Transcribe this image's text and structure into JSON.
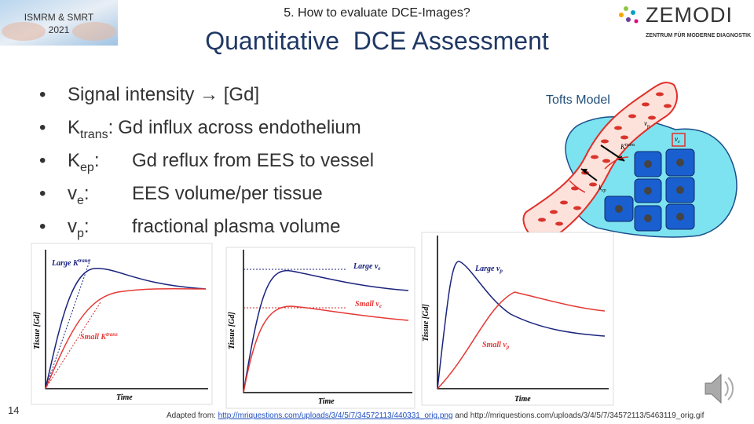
{
  "badge": {
    "line1": "ISMRM & SMRT",
    "line2": "2021"
  },
  "subtitle": "5. How to evaluate DCE-Images?",
  "title": "Quantitative  DCE Assessment",
  "logo": {
    "name": "ZEMODI",
    "tagline": "ZENTRUM FÜR MODERNE DIAGNOSTIK"
  },
  "bullets": [
    {
      "text": "Signal intensity → [Gd]"
    },
    {
      "symbol": "K",
      "sub": "trans",
      "colon": ":",
      "text": "Gd influx across endothelium"
    },
    {
      "symbol": "K",
      "sub": "ep",
      "colon": ":",
      "text": "Gd reflux from EES to vessel"
    },
    {
      "symbol": "v",
      "sub": "e",
      "colon": ":",
      "text": "EES volume/per tissue"
    },
    {
      "symbol": "v",
      "sub": "p",
      "colon": ":",
      "text": "fractional plasma volume"
    }
  ],
  "diagram": {
    "title": "Tofts Model",
    "labels": [
      {
        "symbol": "v",
        "sub": "p"
      },
      {
        "symbol": "K",
        "sub": "trans"
      },
      {
        "symbol": "k",
        "sub": "ep"
      },
      {
        "symbol": "v",
        "sub": "e"
      }
    ]
  },
  "graphs": [
    {
      "y_label": "Tissue [Gd]",
      "x_label": "Time",
      "large": {
        "text": "Large K",
        "sup": "trans"
      },
      "small": {
        "text": "Small K",
        "sup": "trans"
      }
    },
    {
      "y_label": "Tissue [Gd]",
      "x_label": "Time",
      "large": {
        "text": "Large v",
        "sub": "e"
      },
      "small": {
        "text": "Small v",
        "sub": "e"
      }
    },
    {
      "y_label": "Tissue [Gd]",
      "x_label": "Time",
      "large": {
        "text": "Large v",
        "sub": "p"
      },
      "small": {
        "text": "Small v",
        "sub": "p"
      }
    }
  ],
  "page_number": "14",
  "footer": {
    "prefix": "Adapted from:",
    "link": "http://mriquestions.com/uploads/3/4/5/7/34572113/440331_orig.png",
    "joiner": "and",
    "source2": "http://mriquestions.com/uploads/3/4/5/7/34572113/5463119_orig.gif"
  }
}
